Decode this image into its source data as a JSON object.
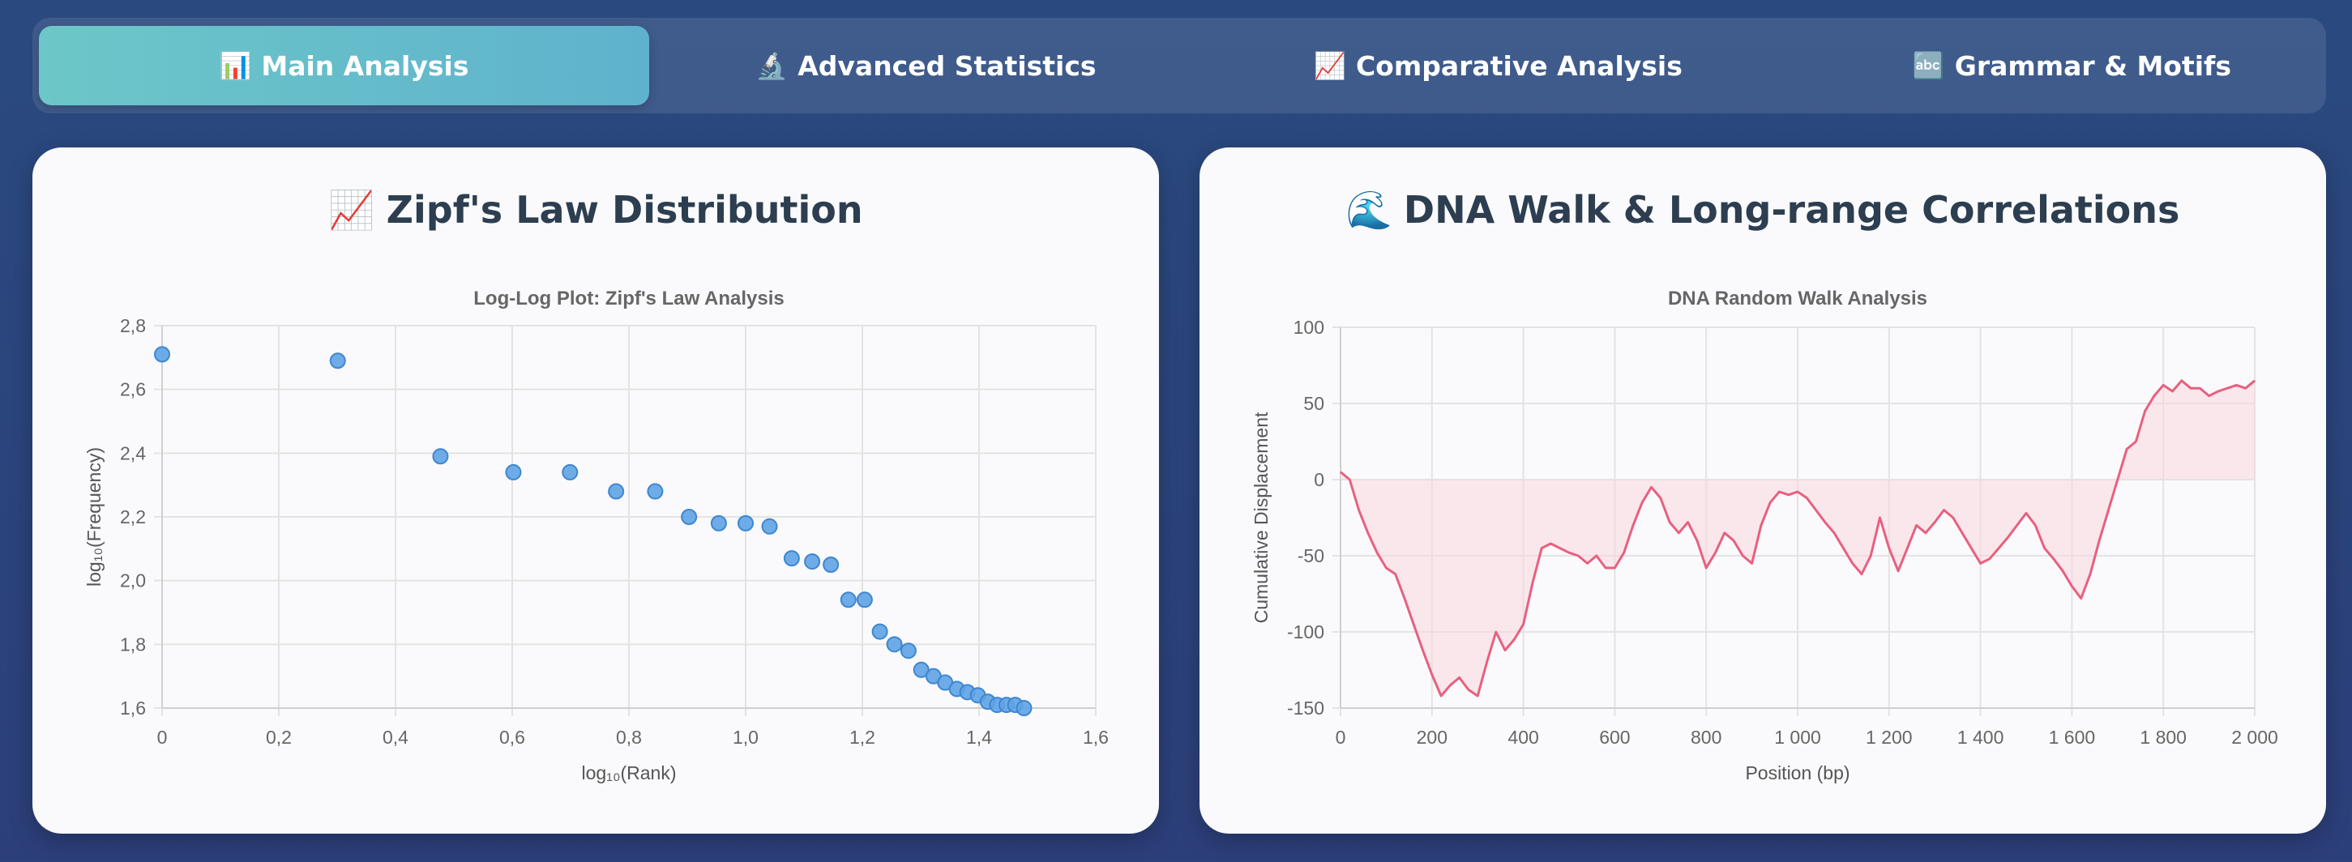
{
  "tabs": [
    {
      "icon": "📊",
      "icon_name": "bar-chart-icon",
      "label": "Main Analysis",
      "active": true
    },
    {
      "icon": "🔬",
      "icon_name": "microscope-icon",
      "label": "Advanced Statistics",
      "active": false
    },
    {
      "icon": "📈",
      "icon_name": "trend-chart-icon",
      "label": "Comparative Analysis",
      "active": false
    },
    {
      "icon": "🔤",
      "icon_name": "abc-letters-icon",
      "label": "Grammar & Motifs",
      "active": false
    }
  ],
  "cards": [
    {
      "icon": "📈",
      "icon_name": "trend-chart-icon",
      "title": "Zipf's Law Distribution"
    },
    {
      "icon": "🌊",
      "icon_name": "wave-icon",
      "title": "DNA Walk & Long-range Correlations"
    }
  ],
  "colors": {
    "scatter_point": "#5ea3e6",
    "walk_line": "#e8607f",
    "walk_fill": "#f8d7df",
    "active_tab": "#66bccc"
  },
  "chart_data": [
    {
      "type": "scatter",
      "title": "Log-Log Plot: Zipf's Law Analysis",
      "xlabel": "log₁₀(Rank)",
      "ylabel": "log₁₀(Frequency)",
      "xlim": [
        0,
        1.6
      ],
      "ylim": [
        1.6,
        2.8
      ],
      "xticks": [
        "0",
        "0,2",
        "0,4",
        "0,6",
        "0,8",
        "1,0",
        "1,2",
        "1,4",
        "1,6"
      ],
      "yticks": [
        "1,6",
        "1,8",
        "2,0",
        "2,2",
        "2,4",
        "2,6",
        "2,8"
      ],
      "grid": true,
      "x": [
        0,
        0.301,
        0.477,
        0.602,
        0.699,
        0.778,
        0.845,
        0.903,
        0.954,
        1.0,
        1.041,
        1.079,
        1.114,
        1.146,
        1.176,
        1.204,
        1.23,
        1.255,
        1.279,
        1.301,
        1.322,
        1.342,
        1.362,
        1.38,
        1.398,
        1.415,
        1.431,
        1.447,
        1.462,
        1.477
      ],
      "y": [
        2.71,
        2.69,
        2.39,
        2.34,
        2.34,
        2.28,
        2.28,
        2.2,
        2.18,
        2.18,
        2.17,
        2.07,
        2.06,
        2.05,
        1.94,
        1.94,
        1.84,
        1.8,
        1.78,
        1.72,
        1.7,
        1.68,
        1.66,
        1.65,
        1.64,
        1.62,
        1.61,
        1.61,
        1.61,
        1.6
      ]
    },
    {
      "type": "area",
      "title": "DNA Random Walk Analysis",
      "xlabel": "Position (bp)",
      "ylabel": "Cumulative Displacement",
      "xlim": [
        0,
        2000
      ],
      "ylim": [
        -150,
        100
      ],
      "xticks": [
        "0",
        "200",
        "400",
        "600",
        "800",
        "1 000",
        "1 200",
        "1 400",
        "1 600",
        "1 800",
        "2 000"
      ],
      "yticks": [
        "100",
        "50",
        "0",
        "-50",
        "-100",
        "-150"
      ],
      "grid": true,
      "x": [
        0,
        20,
        40,
        60,
        80,
        100,
        120,
        140,
        160,
        180,
        200,
        220,
        240,
        260,
        280,
        300,
        320,
        340,
        360,
        380,
        400,
        420,
        440,
        460,
        480,
        500,
        520,
        540,
        560,
        580,
        600,
        620,
        640,
        660,
        680,
        700,
        720,
        740,
        760,
        780,
        800,
        820,
        840,
        860,
        880,
        900,
        920,
        940,
        960,
        980,
        1000,
        1020,
        1040,
        1060,
        1080,
        1100,
        1120,
        1140,
        1160,
        1180,
        1200,
        1220,
        1240,
        1260,
        1280,
        1300,
        1320,
        1340,
        1360,
        1380,
        1400,
        1420,
        1440,
        1460,
        1480,
        1500,
        1520,
        1540,
        1560,
        1580,
        1600,
        1620,
        1640,
        1660,
        1680,
        1700,
        1720,
        1740,
        1760,
        1780,
        1800,
        1820,
        1840,
        1860,
        1880,
        1900,
        1920,
        1940,
        1960,
        1980,
        2000
      ],
      "y": [
        5,
        0,
        -20,
        -35,
        -48,
        -58,
        -62,
        -78,
        -95,
        -112,
        -128,
        -142,
        -135,
        -130,
        -138,
        -142,
        -120,
        -100,
        -112,
        -105,
        -95,
        -68,
        -45,
        -42,
        -45,
        -48,
        -50,
        -55,
        -50,
        -58,
        -58,
        -48,
        -30,
        -15,
        -5,
        -12,
        -28,
        -35,
        -28,
        -40,
        -58,
        -48,
        -35,
        -40,
        -50,
        -55,
        -30,
        -15,
        -8,
        -10,
        -8,
        -12,
        -20,
        -28,
        -35,
        -45,
        -55,
        -62,
        -50,
        -25,
        -45,
        -60,
        -45,
        -30,
        -35,
        -28,
        -20,
        -25,
        -35,
        -45,
        -55,
        -52,
        -45,
        -38,
        -30,
        -22,
        -30,
        -45,
        -52,
        -60,
        -70,
        -78,
        -62,
        -40,
        -20,
        0,
        20,
        25,
        45,
        55,
        62,
        58,
        65,
        60,
        60,
        55,
        58,
        60,
        62,
        60,
        65
      ]
    }
  ]
}
